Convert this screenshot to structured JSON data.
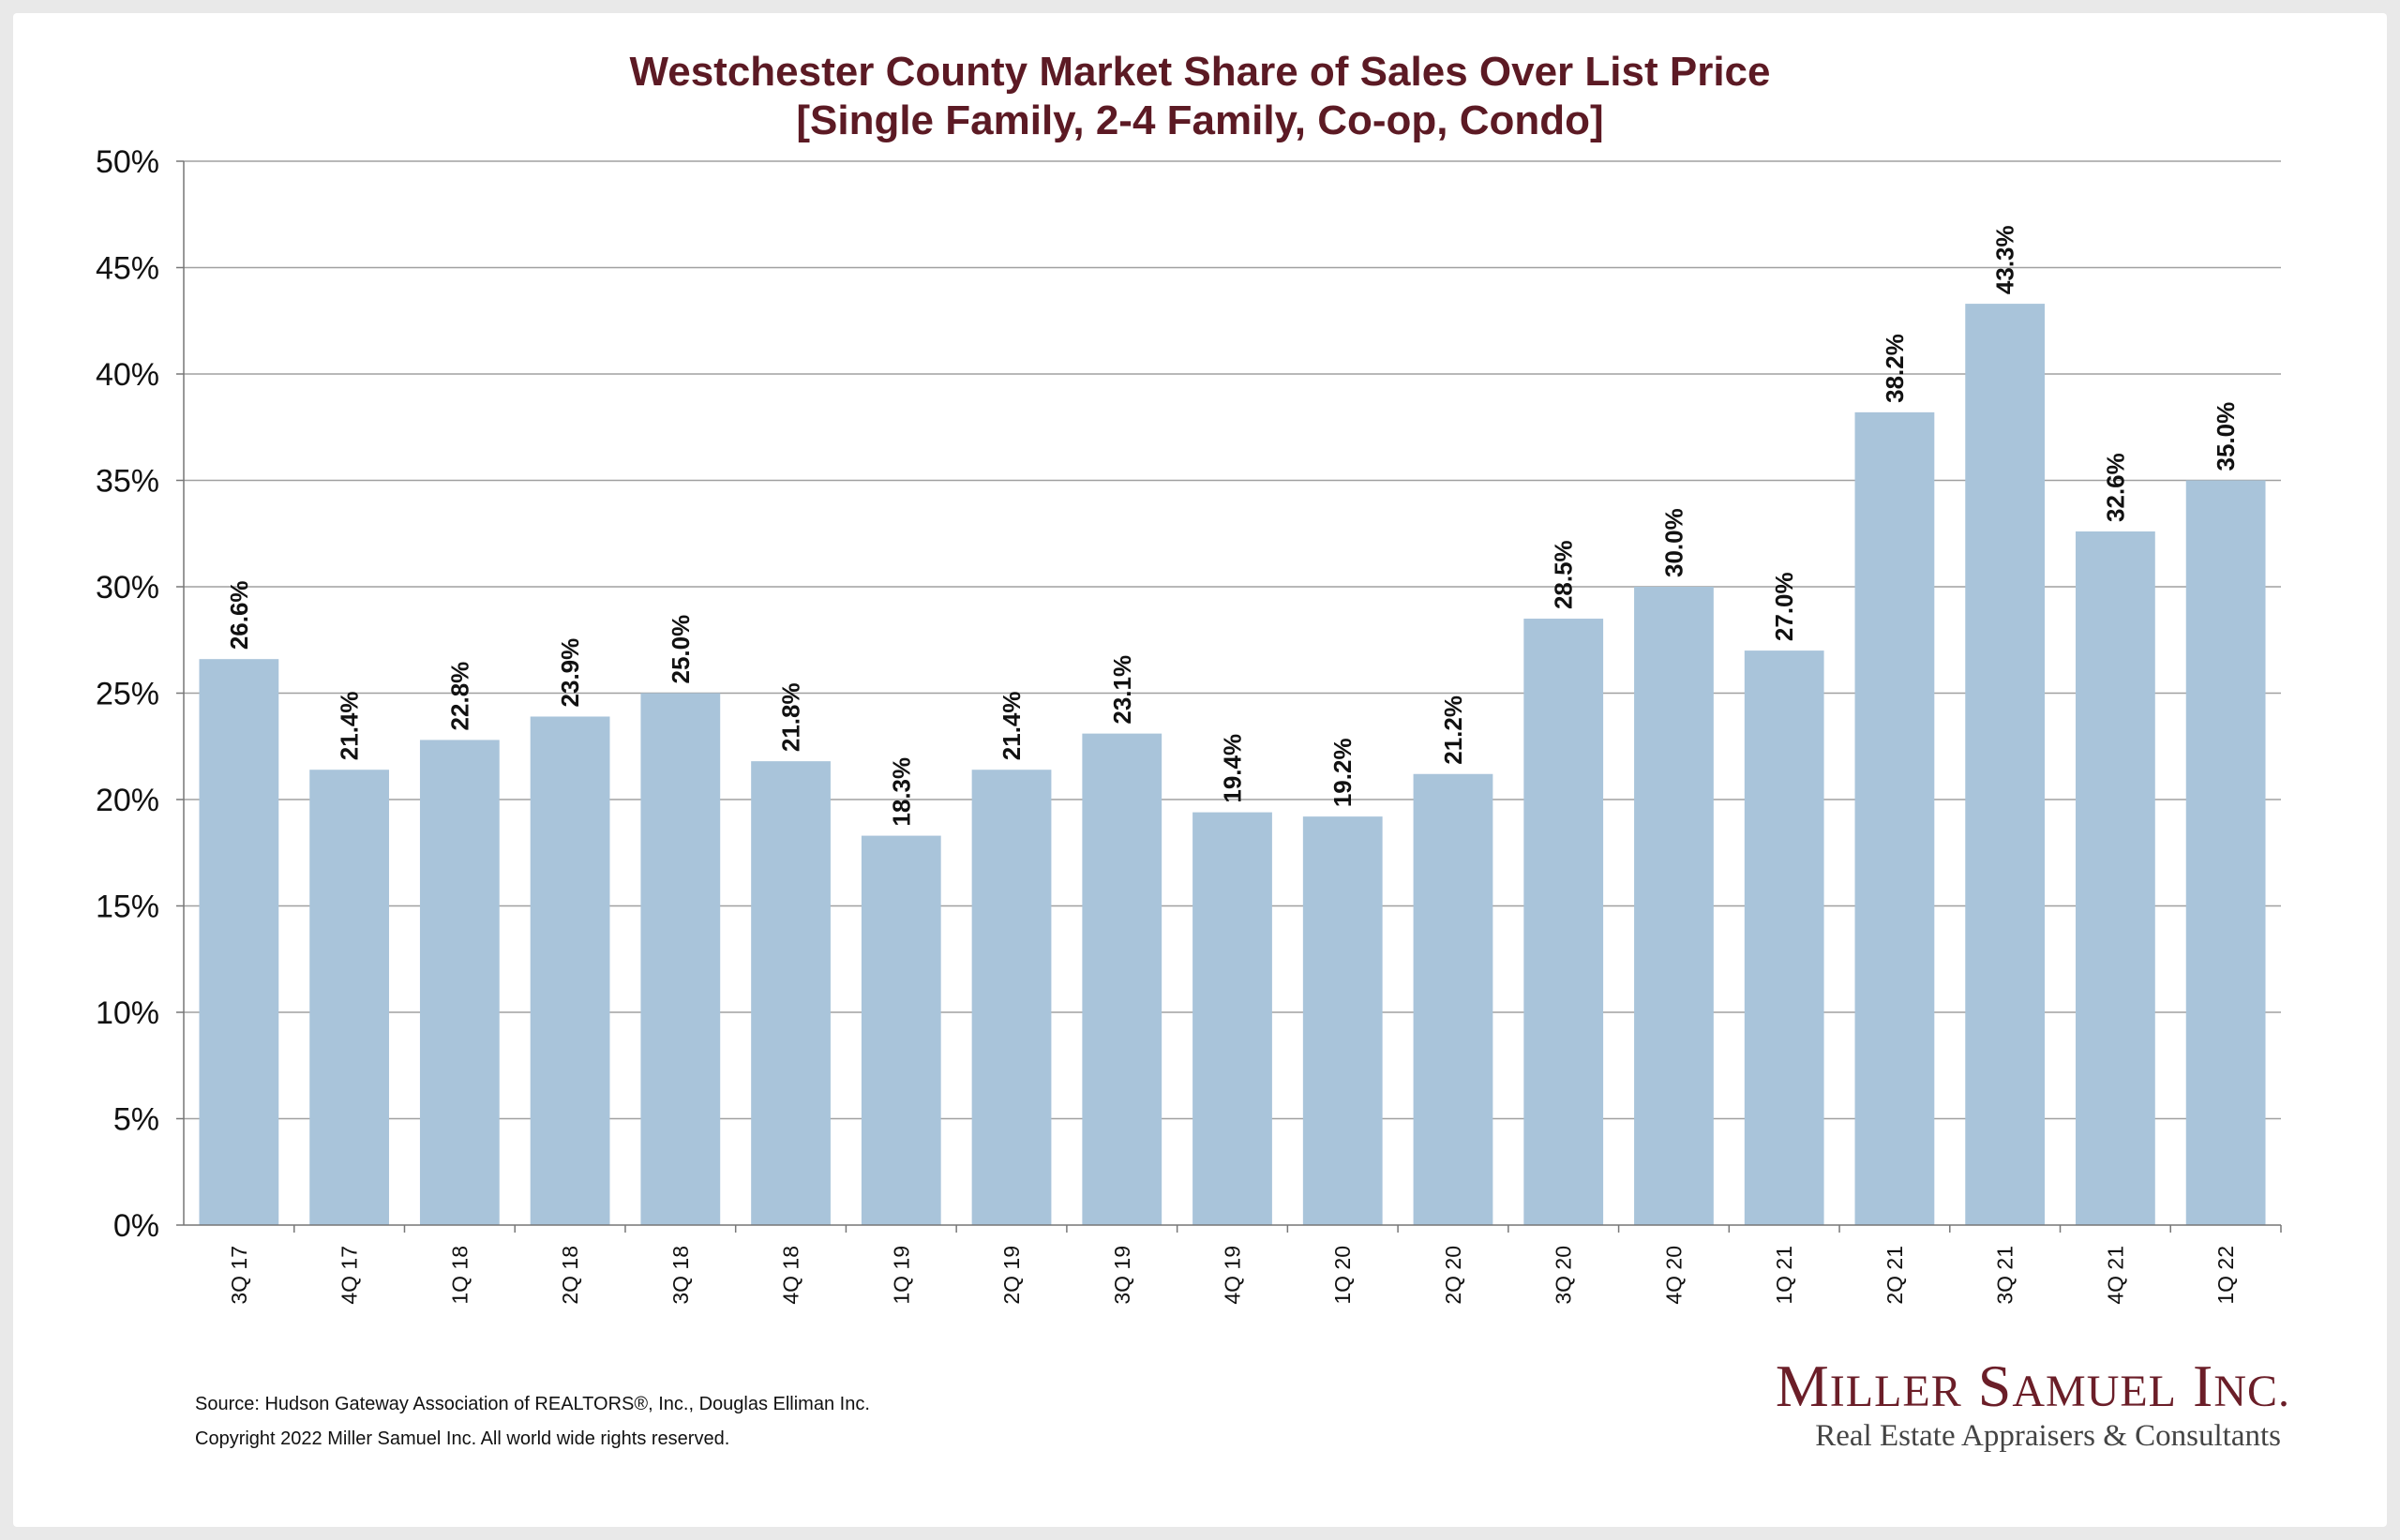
{
  "title_line1": "Westchester County Market Share of Sales Over List Price",
  "title_line2": "[Single Family, 2-4 Family, Co-op, Condo]",
  "chart_data": {
    "type": "bar",
    "categories": [
      "3Q 17",
      "4Q 17",
      "1Q 18",
      "2Q 18",
      "3Q 18",
      "4Q 18",
      "1Q 19",
      "2Q 19",
      "3Q 19",
      "4Q 19",
      "1Q 20",
      "2Q 20",
      "3Q 20",
      "4Q 20",
      "1Q 21",
      "2Q 21",
      "3Q 21",
      "4Q 21",
      "1Q 22"
    ],
    "values": [
      26.6,
      21.4,
      22.8,
      23.9,
      25.0,
      21.8,
      18.3,
      21.4,
      23.1,
      19.4,
      19.2,
      21.2,
      28.5,
      30.0,
      27.0,
      38.2,
      43.3,
      32.6,
      35.0
    ],
    "data_labels": [
      "26.6%",
      "21.4%",
      "22.8%",
      "23.9%",
      "25.0%",
      "21.8%",
      "18.3%",
      "21.4%",
      "23.1%",
      "19.4%",
      "19.2%",
      "21.2%",
      "28.5%",
      "30.0%",
      "27.0%",
      "38.2%",
      "43.3%",
      "32.6%",
      "35.0%"
    ],
    "y_ticks": [
      0,
      5,
      10,
      15,
      20,
      25,
      30,
      35,
      40,
      45,
      50
    ],
    "y_tick_labels": [
      "0%",
      "5%",
      "10%",
      "15%",
      "20%",
      "25%",
      "30%",
      "35%",
      "40%",
      "45%",
      "50%"
    ],
    "ylim": [
      0,
      50
    ],
    "grid": true,
    "bar_color": "#a9c4da",
    "grid_color": "#a0a0a0"
  },
  "footer": {
    "source": "Source: Hudson Gateway Association of REALTORS®, Inc., Douglas Elliman Inc.",
    "copyright": "Copyright 2022 Miller Samuel Inc.  All world wide rights reserved."
  },
  "logo": {
    "name_initial_1": "M",
    "name_rest_1": "ILLER",
    "name_initial_2": "S",
    "name_rest_2": "AMUEL",
    "name_initial_3": "I",
    "name_rest_3": "NC.",
    "tagline": "Real Estate Appraisers & Consultants"
  },
  "colors": {
    "title": "#5c1a24",
    "logo": "#6b1e28"
  }
}
